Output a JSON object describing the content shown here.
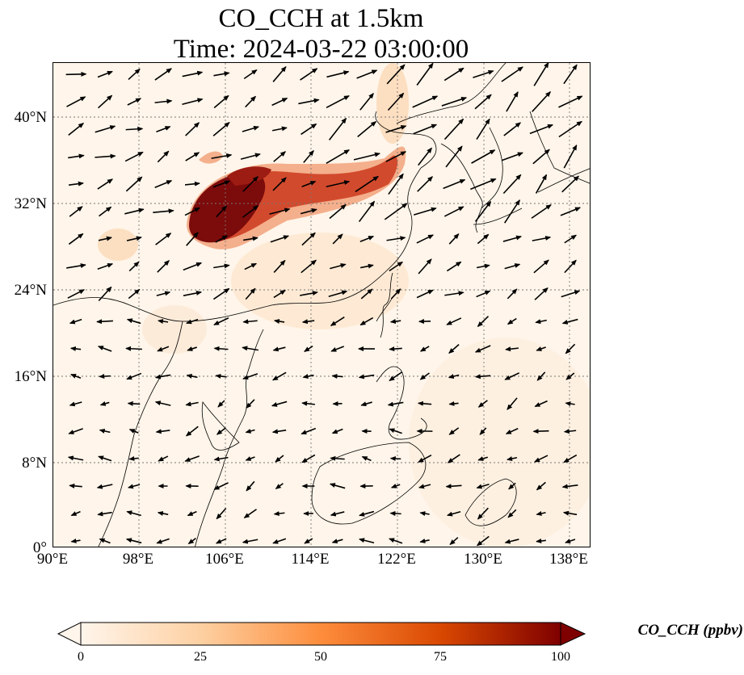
{
  "title": {
    "line1": "CO_CCH at 1.5km",
    "line2": "Time: 2024-03-22 03:00:00"
  },
  "axes": {
    "lat_labels": [
      "40°N",
      "32°N",
      "24°N",
      "16°N",
      "8°N",
      "0°"
    ],
    "lon_labels": [
      "90°E",
      "98°E",
      "106°E",
      "114°E",
      "122°E",
      "130°E",
      "138°E"
    ]
  },
  "colorbar": {
    "label": "CO_CCH (ppbv)",
    "ticks": [
      "0",
      "25",
      "50",
      "75",
      "100"
    ],
    "colors": [
      "#fff5eb",
      "#fdd0a2",
      "#fd8d3c",
      "#d94801",
      "#7f0000"
    ]
  },
  "colors": {
    "background": "#fff5ea",
    "plume_light": "#f7b58e",
    "plume_mid": "#d9452b",
    "plume_dark": "#7d0a0a",
    "coast": "#000000",
    "grid": "#777777"
  }
}
